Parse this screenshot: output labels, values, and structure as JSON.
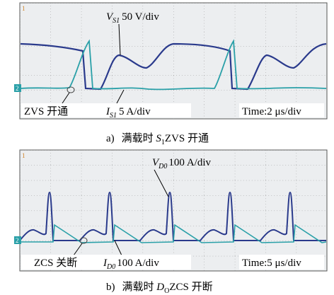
{
  "panel_a": {
    "voltage_label": {
      "symbol": "V",
      "subscript": "S1",
      "scale": "50 V/div"
    },
    "annotation": "ZVS 开通",
    "current_label": {
      "symbol": "I",
      "subscript": "S1",
      "scale": "5 A/div"
    },
    "time_base": "Time:2 μs/div",
    "channel_1": "1",
    "channel_2": "2",
    "caption": {
      "label": "a)",
      "prefix": "满载时 ",
      "symbol": "S",
      "subscript": "1",
      "suffix": "ZVS 开通"
    }
  },
  "panel_b": {
    "voltage_label": {
      "symbol": "V",
      "subscript": "D0",
      "scale": "100 A/div"
    },
    "annotation": "ZCS 关断",
    "current_label": {
      "symbol": "I",
      "subscript": "D0",
      "scale": "100 A/div"
    },
    "time_base": "Time:5 μs/div",
    "channel_1": "1",
    "channel_2": "2",
    "caption": {
      "label": "b)",
      "prefix": "满载时 ",
      "symbol": "D",
      "subscript": "O",
      "suffix": "ZCS 开断"
    }
  }
}
